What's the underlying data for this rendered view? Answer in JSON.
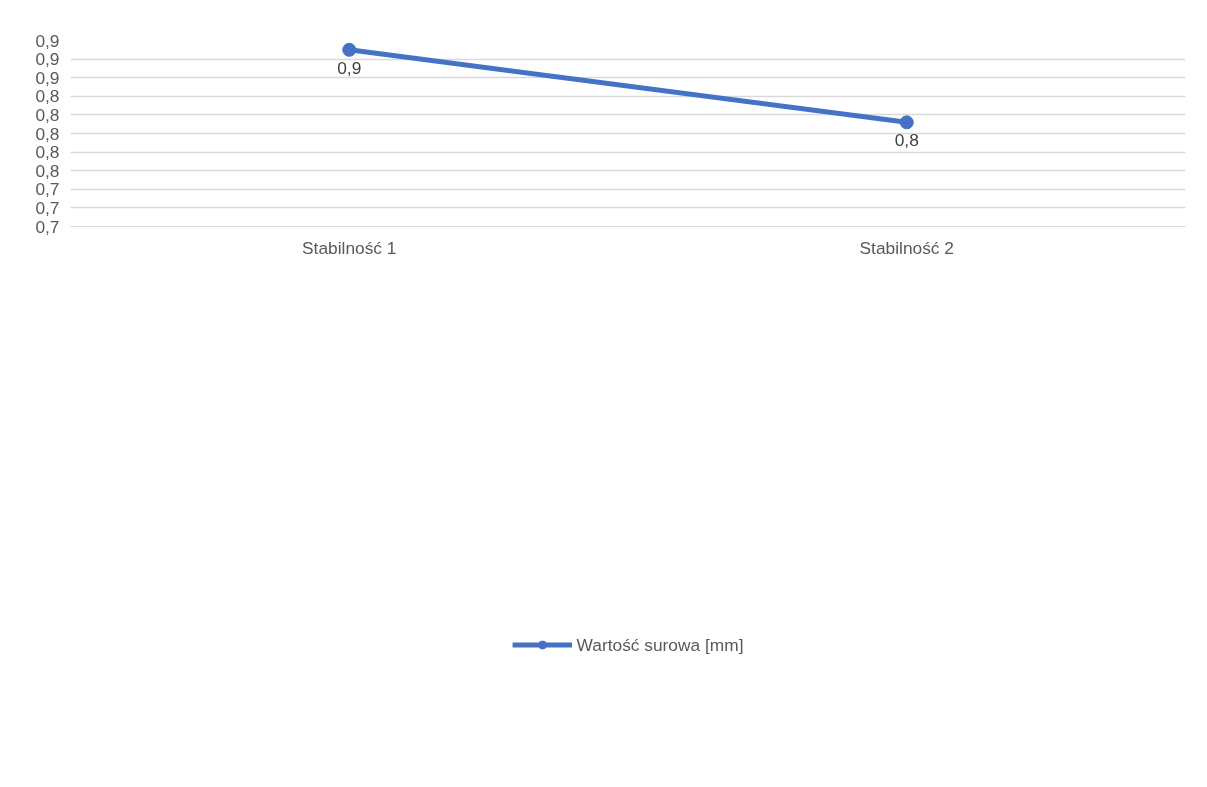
{
  "chart_data": {
    "type": "line",
    "categories": [
      "Stabilność 1",
      "Stabilność 2"
    ],
    "series": [
      {
        "name": "Wartość surowa [mm]",
        "color": "#4472c4",
        "values": [
          0.89,
          0.812
        ],
        "value_labels": [
          "0,9",
          "0,8"
        ]
      }
    ],
    "ylim": [
      0.7,
      0.9
    ],
    "yticks": [
      {
        "value": 0.7,
        "label": "0,7"
      },
      {
        "value": 0.72,
        "label": "0,7"
      },
      {
        "value": 0.74,
        "label": "0,7"
      },
      {
        "value": 0.76,
        "label": "0,8"
      },
      {
        "value": 0.78,
        "label": "0,8"
      },
      {
        "value": 0.8,
        "label": "0,8"
      },
      {
        "value": 0.82,
        "label": "0,8"
      },
      {
        "value": 0.84,
        "label": "0,8"
      },
      {
        "value": 0.86,
        "label": "0,9"
      },
      {
        "value": 0.88,
        "label": "0,9"
      },
      {
        "value": 0.9,
        "label": "0,9"
      }
    ],
    "grid": "y",
    "legend": "bottom",
    "marker": "circle",
    "line_style": "solid"
  }
}
